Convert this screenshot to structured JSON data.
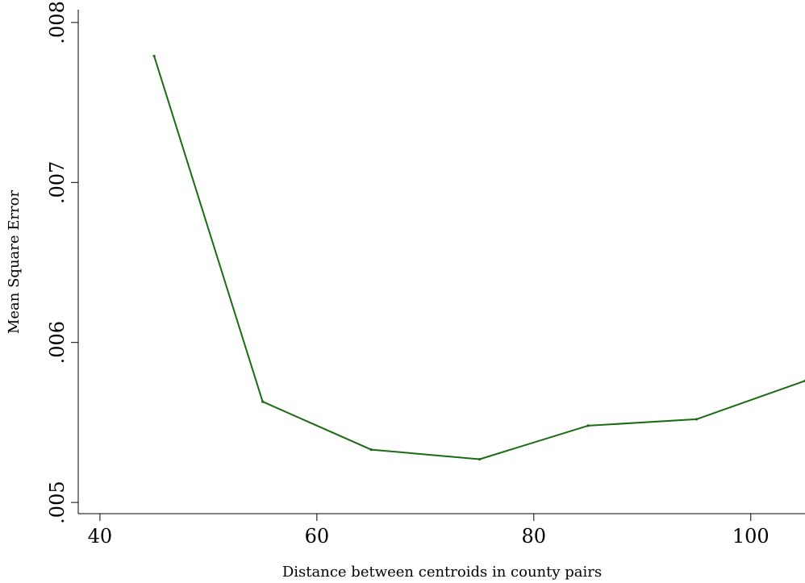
{
  "chart_data": {
    "type": "line",
    "title": "",
    "xlabel": "Distance between centroids in county pairs",
    "ylabel": "Mean Square Error",
    "xlim": [
      38,
      105
    ],
    "ylim": [
      0.00493,
      0.00808
    ],
    "x_ticks": [
      {
        "value": 40,
        "label": "40"
      },
      {
        "value": 60,
        "label": "60"
      },
      {
        "value": 80,
        "label": "80"
      },
      {
        "value": 100,
        "label": "100"
      }
    ],
    "y_ticks": [
      {
        "value": 0.005,
        "label": ".005"
      },
      {
        "value": 0.006,
        "label": ".006"
      },
      {
        "value": 0.007,
        "label": ".007"
      },
      {
        "value": 0.008,
        "label": ".008"
      }
    ],
    "grid": false,
    "legend": "none",
    "series": [
      {
        "color": "#1a6b12",
        "x": [
          45,
          55,
          65,
          75,
          85,
          95,
          105
        ],
        "y": [
          0.00779,
          0.00563,
          0.00533,
          0.00527,
          0.00548,
          0.00552,
          0.00576
        ]
      }
    ]
  }
}
